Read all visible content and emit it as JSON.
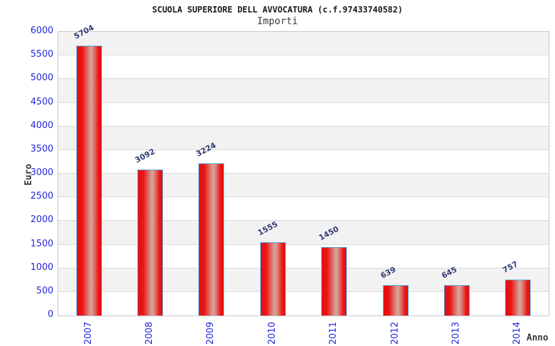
{
  "header": {
    "title": "SCUOLA SUPERIORE DELL AVVOCATURA (c.f.97433740582)",
    "subtitle": "Importi"
  },
  "chart_data": {
    "type": "bar",
    "title": "SCUOLA SUPERIORE DELL AVVOCATURA (c.f.97433740582)",
    "subtitle": "Importi",
    "categories": [
      "2007",
      "2008",
      "2009",
      "2010",
      "2011",
      "2012",
      "2013",
      "2014"
    ],
    "values": [
      5704,
      3092,
      3224,
      1555,
      1450,
      639,
      645,
      757
    ],
    "xlabel": "Anno",
    "ylabel": "Euro",
    "ylim": [
      0,
      6000
    ],
    "ytick_step": 500,
    "grid": true,
    "legend": false,
    "background": "alternating horizontal bands white/gray every 500",
    "colors": {
      "bar_red": "#ec1515",
      "bar_red_deep": "#e20f0f",
      "bar_highlight": "#d4a69f",
      "bar_mid": "#dd7a72",
      "bar_border": "#58a7e0",
      "band_gray": "#f2f2f2",
      "band_white": "#ffffff",
      "gridline": "#dcdcdc",
      "plot_border": "#c8c8c8",
      "tick_text_blue": "#2323dd",
      "value_label_navy": "#303a72",
      "title_text": "#1a1a1a",
      "subtitle_text": "#404040",
      "axis_title_text": "#383838"
    }
  }
}
